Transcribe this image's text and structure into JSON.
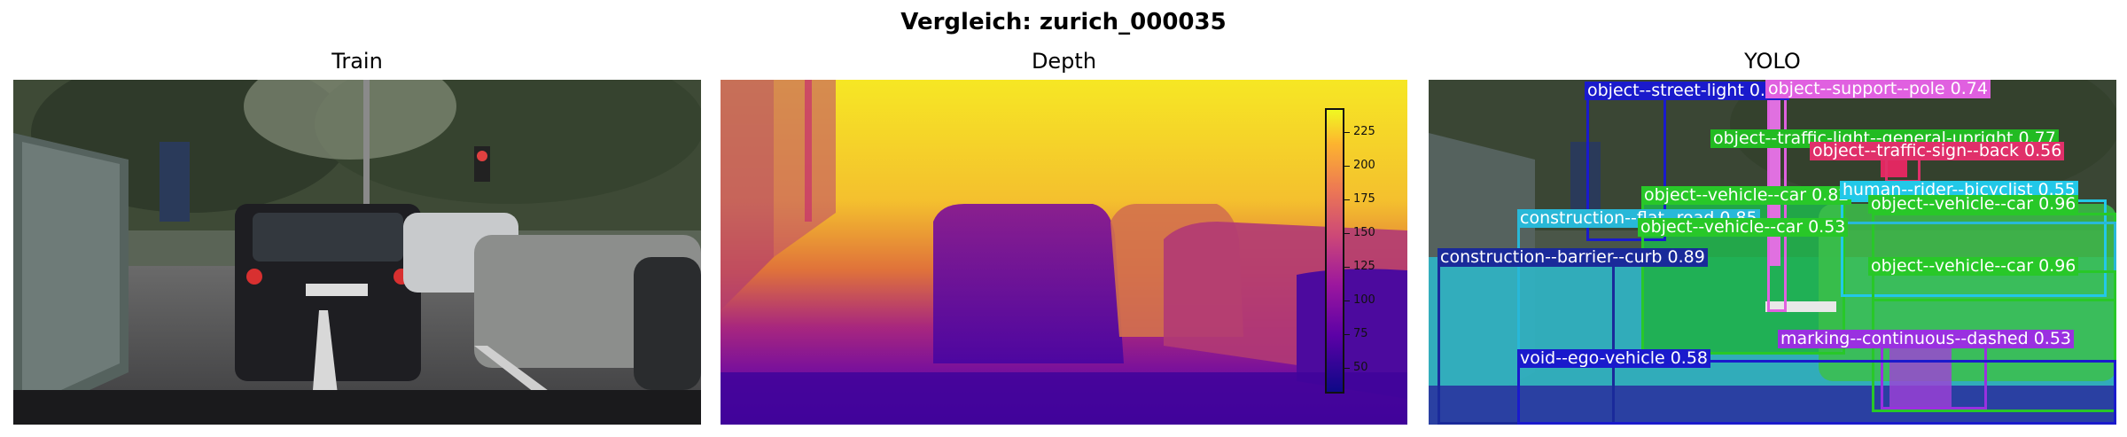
{
  "figure": {
    "title": "Vergleich: zurich_000035"
  },
  "panels": [
    {
      "title": "Train"
    },
    {
      "title": "Depth"
    },
    {
      "title": "YOLO"
    }
  ],
  "depth": {
    "colorbar_ticks": [
      "225",
      "200",
      "175",
      "150",
      "125",
      "100",
      "75",
      "50"
    ]
  },
  "yolo": {
    "detections": [
      {
        "label": "object--street-light 0.71",
        "color": "#1a1acc"
      },
      {
        "label": "object--support--pole 0.74",
        "color": "#e060e0"
      },
      {
        "label": "object--traffic-light--general-upright 0.77",
        "color": "#22bb22"
      },
      {
        "label": "object--traffic-sign--back 0.56",
        "color": "#e0306a"
      },
      {
        "label": "object--vehicle--car 0.82",
        "color": "#28c828"
      },
      {
        "label": "human--rider--bicyclist 0.55",
        "color": "#22c8e8"
      },
      {
        "label": "object--vehicle--car 0.96",
        "color": "#28c828"
      },
      {
        "label": "construction--flat--road 0.85",
        "color": "#28b8d8"
      },
      {
        "label": "object--vehicle--car 0.53",
        "color": "#28c828"
      },
      {
        "label": "construction--barrier--curb 0.89",
        "color": "#1a2a9a"
      },
      {
        "label": "object--vehicle--car 0.96",
        "color": "#28c828"
      },
      {
        "label": "marking--continuous--dashed 0.53",
        "color": "#9a30e0"
      },
      {
        "label": "void--ego-vehicle 0.58",
        "color": "#1a1acc"
      }
    ]
  }
}
